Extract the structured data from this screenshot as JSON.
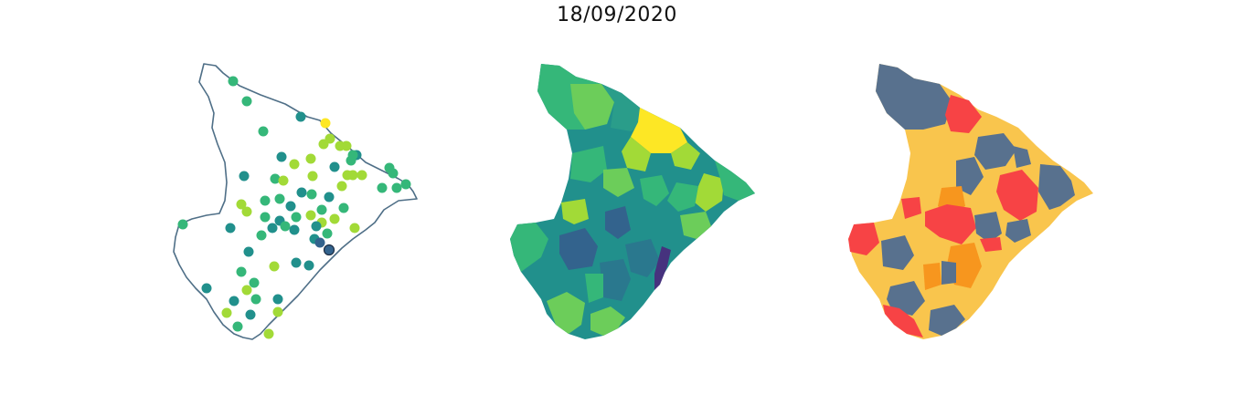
{
  "title": "18/09/2020",
  "colors": {
    "outline": "#4f6f87",
    "viridis_dark": "#33638d",
    "viridis_purple": "#46327e",
    "teal": "#21908c",
    "teal_mid": "#2a9d8a",
    "green": "#35b779",
    "green_light": "#6ccd5a",
    "lime": "#a2da37",
    "yellow": "#fde725",
    "cls_blue": "#58718e",
    "cls_yellow": "#f9c54d",
    "cls_orange": "#f7961e",
    "cls_red": "#f74345"
  }
}
